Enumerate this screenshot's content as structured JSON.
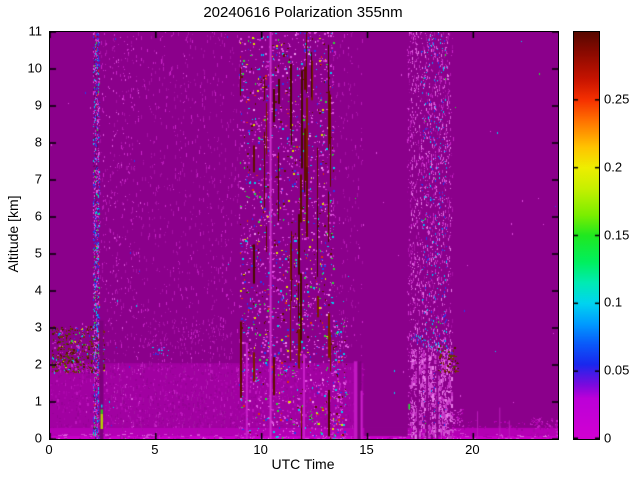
{
  "chart_data": {
    "type": "heatmap",
    "title": "20240616 Polarization 355nm",
    "xlabel": "UTC Time",
    "ylabel": "Altitude [km]",
    "x_range": [
      0,
      24
    ],
    "y_range": [
      0,
      11
    ],
    "grid": false,
    "x_ticks": {
      "values": [
        0,
        5,
        10,
        15,
        20
      ],
      "labels": [
        "0",
        "5",
        "10",
        "15",
        "20"
      ]
    },
    "y_ticks": {
      "values": [
        0,
        1,
        2,
        3,
        4,
        5,
        6,
        7,
        8,
        9,
        10,
        11
      ],
      "labels": [
        "0",
        "1",
        "2",
        "3",
        "4",
        "5",
        "6",
        "7",
        "8",
        "9",
        "10",
        "11"
      ]
    },
    "colorbar": {
      "vmin": 0,
      "vmax": 0.3,
      "ticks": [
        0,
        0.05,
        0.1,
        0.15,
        0.2,
        0.25
      ],
      "tick_labels": [
        "0",
        "0.05",
        "0.1",
        "0.15",
        "0.2",
        "0.25"
      ],
      "position": "right",
      "stops": [
        [
          0.0,
          "#D200D2"
        ],
        [
          0.03,
          "#BC00D8"
        ],
        [
          0.04,
          "#7A0ADE"
        ],
        [
          0.055,
          "#1A28EE"
        ],
        [
          0.07,
          "#0A5AFA"
        ],
        [
          0.085,
          "#009CFF"
        ],
        [
          0.1,
          "#00D4F0"
        ],
        [
          0.115,
          "#00EBB4"
        ],
        [
          0.13,
          "#00F060"
        ],
        [
          0.15,
          "#20E820"
        ],
        [
          0.165,
          "#7BEE00"
        ],
        [
          0.185,
          "#C8F000"
        ],
        [
          0.2,
          "#EEEE00"
        ],
        [
          0.215,
          "#FFC400"
        ],
        [
          0.235,
          "#FF7000"
        ],
        [
          0.25,
          "#F63000"
        ],
        [
          0.265,
          "#C81400"
        ],
        [
          0.285,
          "#8A0A00"
        ],
        [
          0.3,
          "#570800"
        ]
      ]
    },
    "background_color": "#8B008B",
    "features": [
      {
        "kind": "fill",
        "name": "background-low-depol",
        "t": [
          0,
          24
        ],
        "z": [
          0,
          11
        ],
        "color": "#8B008B"
      },
      {
        "kind": "fill",
        "name": "boundary-layer",
        "t": [
          0,
          14.8
        ],
        "z": [
          0.3,
          2.05
        ],
        "color": "#A101A1"
      },
      {
        "kind": "speckle",
        "name": "boundary-layer-texture",
        "t": [
          0,
          14.8
        ],
        "z": [
          0.3,
          2.05
        ],
        "density": 0.06,
        "dot": [
          2,
          3
        ],
        "palette": [
          [
            "#AB06AB",
            5
          ],
          [
            "#970297",
            5
          ],
          [
            "#BD17BD",
            2
          ]
        ]
      },
      {
        "kind": "fill",
        "name": "surface-strip",
        "t": [
          0,
          24
        ],
        "z": [
          0,
          0.3
        ],
        "color": "#B400B4"
      },
      {
        "kind": "fill",
        "name": "surface-line",
        "t": [
          0,
          24
        ],
        "z": [
          0,
          0.08
        ],
        "color": "#C900C9"
      },
      {
        "kind": "speckle",
        "name": "surface-dashes",
        "t": [
          0,
          24
        ],
        "z": [
          0,
          0.14
        ],
        "density": 0.09,
        "dot": [
          4,
          1
        ],
        "palette": [
          [
            "#D442D4",
            3
          ],
          [
            "#E066E0",
            1
          ],
          [
            "#AD00AD",
            3
          ]
        ]
      },
      {
        "kind": "fill",
        "name": "quiet-surface",
        "t": [
          14.85,
          16.9
        ],
        "z": [
          0.08,
          0.3
        ],
        "color": "#8B008B"
      },
      {
        "kind": "speckle",
        "name": "drizzle-early",
        "t": [
          2.35,
          9.0
        ],
        "z": [
          0,
          11
        ],
        "density": 0.022,
        "dot": [
          1,
          4
        ],
        "palette": [
          [
            "#A311A3",
            5
          ],
          [
            "#B51AB5",
            3
          ],
          [
            "#C724C7",
            1.5
          ]
        ]
      },
      {
        "kind": "speckle",
        "name": "drizzle-band-halo",
        "t": [
          13.3,
          14.78
        ],
        "z": [
          0,
          11
        ],
        "density": 0.02,
        "dot": [
          1,
          4
        ],
        "palette": [
          [
            "#A311A3",
            5
          ],
          [
            "#B51AB5",
            3
          ],
          [
            "#C724C7",
            1.5
          ]
        ]
      },
      {
        "kind": "speckle",
        "name": "drizzle-right-band",
        "t": [
          16.95,
          19.05
        ],
        "z": [
          0,
          11
        ],
        "density": 0.03,
        "dot": [
          1,
          4
        ],
        "palette": [
          [
            "#A311A3",
            5
          ],
          [
            "#B51AB5",
            3
          ],
          [
            "#C724C7",
            1.5
          ]
        ]
      },
      {
        "kind": "speckle",
        "name": "aerosol-cluster-early",
        "t": [
          0.1,
          2.55
        ],
        "z": [
          1.8,
          3.05
        ],
        "density": 0.28,
        "dot": [
          2,
          2
        ],
        "palette": [
          [
            "#574700",
            5
          ],
          [
            "#5A1500",
            5
          ],
          [
            "#7A3000",
            3
          ],
          [
            "#8B008B",
            7
          ],
          [
            "#C733C7",
            3
          ],
          [
            "#2A3BEE",
            0.6
          ],
          [
            "#00CFEE",
            0.6
          ],
          [
            "#2FD838",
            0.4
          ],
          [
            "#E0E000",
            0.3
          ]
        ]
      },
      {
        "kind": "speckle",
        "name": "noise-column-0220",
        "t": [
          2.05,
          2.33
        ],
        "z": [
          0,
          11
        ],
        "density": 0.5,
        "dot": [
          1,
          2
        ],
        "palette": [
          [
            "#2A3BEE",
            3
          ],
          [
            "#00CFEE",
            2
          ],
          [
            "#CC2CCC",
            4
          ],
          [
            "#6A016A",
            3
          ],
          [
            "#E060E0",
            2
          ],
          [
            "#2FD838",
            0.7
          ],
          [
            "#E03010",
            0.3
          ]
        ]
      },
      {
        "kind": "vline",
        "name": "dark-column-0230",
        "t": 2.43,
        "z": [
          0,
          3.2
        ],
        "color": "#7D017D",
        "w": 4
      },
      {
        "kind": "fill",
        "name": "yellow-spot-0230",
        "t": [
          2.39,
          2.5
        ],
        "z": [
          0.27,
          0.68
        ],
        "color": "#B8D800"
      },
      {
        "kind": "fill",
        "name": "green-spot-0230",
        "t": [
          2.39,
          2.5
        ],
        "z": [
          0.68,
          0.8
        ],
        "color": "#35C814"
      },
      {
        "kind": "fill",
        "name": "cyan-spot-0230",
        "t": [
          2.41,
          2.48
        ],
        "z": [
          0.85,
          0.93
        ],
        "color": "#00CFEE"
      },
      {
        "kind": "speckle",
        "name": "sparse-after-0230",
        "t": [
          2.5,
          4.3
        ],
        "z": [
          0,
          11
        ],
        "density": 0.012,
        "dot": [
          1,
          2
        ],
        "palette": [
          [
            "#C72EC7",
            5
          ],
          [
            "#DD55DD",
            2
          ],
          [
            "#00CFEE",
            0.3
          ],
          [
            "#2A3BEE",
            0.3
          ]
        ]
      },
      {
        "kind": "speckle",
        "name": "residual-layer-streaks",
        "t": [
          4.3,
          8.6
        ],
        "z": [
          2.3,
          3.2
        ],
        "density": 0.05,
        "dot": [
          1,
          3
        ],
        "palette": [
          [
            "#A311A3",
            4
          ],
          [
            "#B51AB5",
            3
          ],
          [
            "#C724C7",
            1
          ]
        ]
      },
      {
        "kind": "speckle",
        "name": "blue-dots-0500",
        "t": [
          4.8,
          5.6
        ],
        "z": [
          2.25,
          2.5
        ],
        "density": 0.1,
        "dot": [
          2,
          1
        ],
        "palette": [
          [
            "#2A3BEE",
            3
          ],
          [
            "#00CFEE",
            2
          ],
          [
            "#5A78FF",
            1
          ]
        ]
      },
      {
        "kind": "speckle",
        "name": "main-noise-band",
        "t": [
          8.95,
          13.4
        ],
        "z": [
          0,
          11
        ],
        "density": 0.055,
        "dot": [
          2,
          2
        ],
        "palette": [
          [
            "#E055E0",
            8
          ],
          [
            "#C828C8",
            6
          ],
          [
            "#2A3BEE",
            2.5
          ],
          [
            "#00CFEE",
            2.5
          ],
          [
            "#2FD838",
            1.6
          ],
          [
            "#E0E000",
            1.2
          ],
          [
            "#E03010",
            1.2
          ],
          [
            "#5E1200",
            2
          ],
          [
            "#EE99EE",
            1
          ]
        ]
      },
      {
        "kind": "vstreaks",
        "name": "dark-red-streaks",
        "t": [
          9.0,
          13.3
        ],
        "z": [
          0,
          11
        ],
        "count": 18,
        "w": 2,
        "seg": [
          20,
          80
        ],
        "colors": [
          "#600E00",
          "#7A1E00",
          "#490900"
        ]
      },
      {
        "kind": "speckle",
        "name": "band-low-extension",
        "t": [
          13.35,
          14.05
        ],
        "z": [
          0,
          3.2
        ],
        "density": 0.1,
        "dot": [
          2,
          2
        ],
        "palette": [
          [
            "#E055E0",
            8
          ],
          [
            "#C828C8",
            6
          ],
          [
            "#2A3BEE",
            2.5
          ],
          [
            "#00CFEE",
            2.5
          ],
          [
            "#2FD838",
            1.6
          ],
          [
            "#E0E000",
            1.2
          ],
          [
            "#E03010",
            1.2
          ],
          [
            "#5E1200",
            2
          ]
        ]
      },
      {
        "kind": "vline",
        "name": "bright-column-1025",
        "t": 10.42,
        "z": [
          0,
          11
        ],
        "color": "#CE30CE",
        "w": 2
      },
      {
        "kind": "vline",
        "name": "bright-column-0920",
        "t": 9.3,
        "z": [
          0,
          2.6
        ],
        "color": "#C81EC8",
        "w": 2
      },
      {
        "kind": "vline",
        "name": "bright-column-1200",
        "t": 12.0,
        "z": [
          0,
          2.3
        ],
        "color": "#C81EC8",
        "w": 2
      },
      {
        "kind": "vline",
        "name": "bright-column-1427",
        "t": 14.45,
        "z": [
          0,
          2.1
        ],
        "color": "#C217C2",
        "w": 4
      },
      {
        "kind": "vline",
        "name": "dark-column-1437",
        "t": 14.62,
        "z": [
          0,
          2.1
        ],
        "color": "#7D017D",
        "w": 4
      },
      {
        "kind": "vline",
        "name": "bright-column-1443",
        "t": 14.72,
        "z": [
          0,
          1.3
        ],
        "color": "#C81EC8",
        "w": 2
      },
      {
        "kind": "speckle",
        "name": "pre-right-band-line",
        "t": [
          16.9,
          17.08
        ],
        "z": [
          0,
          11
        ],
        "density": 0.1,
        "dot": [
          1,
          2
        ],
        "palette": [
          [
            "#C72EC7",
            4
          ],
          [
            "#DD55DD",
            2
          ],
          [
            "#9A059A",
            3
          ]
        ]
      },
      {
        "kind": "fill",
        "name": "green-dot-1700",
        "t": [
          16.93,
          17.01
        ],
        "z": [
          0.8,
          0.95
        ],
        "color": "#2FD838"
      },
      {
        "kind": "speckle",
        "name": "right-band-pink",
        "t": [
          17.05,
          18.95
        ],
        "z": [
          0,
          11
        ],
        "density": 0.085,
        "dot": [
          1,
          3
        ],
        "palette": [
          [
            "#D857D8",
            8
          ],
          [
            "#C22EC2",
            5
          ],
          [
            "#E87AE8",
            3
          ],
          [
            "#8F018F",
            3
          ]
        ]
      },
      {
        "kind": "speckle",
        "name": "right-band-blue-dots",
        "t": [
          17.55,
          18.75
        ],
        "z": [
          0.3,
          11
        ],
        "density": 0.03,
        "dot": [
          1,
          2
        ],
        "palette": [
          [
            "#2A3BEE",
            4
          ],
          [
            "#00CFEE",
            3
          ],
          [
            "#1E88EE",
            2
          ],
          [
            "#2FD838",
            0.4
          ]
        ]
      },
      {
        "kind": "speckle",
        "name": "right-band-lowlevel",
        "t": [
          17.05,
          19.0
        ],
        "z": [
          0,
          2.45
        ],
        "density": 0.3,
        "dot": [
          2,
          4
        ],
        "palette": [
          [
            "#D24FD2",
            6
          ],
          [
            "#C22EC2",
            4
          ],
          [
            "#E87AE8",
            3
          ],
          [
            "#8B008B",
            4
          ]
        ]
      },
      {
        "kind": "vline",
        "name": "right-band-gap1",
        "t": 17.38,
        "z": [
          0,
          2.45
        ],
        "color": "#8B008B",
        "w": 2
      },
      {
        "kind": "vline",
        "name": "right-band-gap2",
        "t": 17.82,
        "z": [
          0,
          2.45
        ],
        "color": "#8B008B",
        "w": 2
      },
      {
        "kind": "vline",
        "name": "right-band-gap3",
        "t": 18.3,
        "z": [
          0,
          2.45
        ],
        "color": "#8B008B",
        "w": 2
      },
      {
        "kind": "arc",
        "name": "cloud-cap-arc",
        "t": [
          17.1,
          19.0
        ],
        "z": [
          2.2,
          2.95
        ],
        "zpath": [
          2.78,
          2.35
        ],
        "jitter": 0.12,
        "density": 1.1,
        "palette": [
          [
            "#00CFEE",
            3
          ],
          [
            "#2A3BEE",
            3
          ],
          [
            "#7FE4FF",
            1
          ],
          [
            "#5E1200",
            1.5
          ],
          [
            "#E87AE8",
            1
          ]
        ]
      },
      {
        "kind": "speckle",
        "name": "maroon-cluster-1830",
        "t": [
          18.35,
          19.3
        ],
        "z": [
          1.8,
          2.5
        ],
        "density": 0.22,
        "dot": [
          2,
          2
        ],
        "palette": [
          [
            "#5A1500",
            5
          ],
          [
            "#574700",
            3
          ],
          [
            "#7A3000",
            3
          ],
          [
            "#8B008B",
            5
          ],
          [
            "#C733C7",
            2
          ]
        ]
      },
      {
        "kind": "speckle",
        "name": "right-band-taper",
        "t": [
          19.0,
          19.55
        ],
        "z": [
          0,
          0.8
        ],
        "density": 0.15,
        "dot": [
          2,
          2
        ],
        "palette": [
          [
            "#C72EC7",
            4
          ],
          [
            "#B400B4",
            3
          ],
          [
            "#DD55DD",
            1
          ]
        ]
      },
      {
        "kind": "speckle",
        "name": "evening-surface-bumps",
        "t": [
          19.3,
          24
        ],
        "z": [
          0.25,
          0.5
        ],
        "density": 0.06,
        "dot": [
          2,
          2
        ],
        "palette": [
          [
            "#B400B4",
            4
          ],
          [
            "#A101A1",
            3
          ]
        ]
      },
      {
        "kind": "vline",
        "name": "surface-spike-2012",
        "t": 20.2,
        "z": [
          0,
          0.75
        ],
        "color": "#B91CB9",
        "w": 1
      },
      {
        "kind": "vline",
        "name": "surface-spike-2115",
        "t": 21.25,
        "z": [
          0,
          0.85
        ],
        "color": "#B91CB9",
        "w": 1
      },
      {
        "kind": "vline",
        "name": "surface-spike-2142",
        "t": 21.7,
        "z": [
          0,
          0.5
        ],
        "color": "#B91CB9",
        "w": 1
      },
      {
        "kind": "speckle",
        "name": "late-surface-texture",
        "t": [
          22.7,
          23.95
        ],
        "z": [
          0.1,
          0.6
        ],
        "density": 0.12,
        "dot": [
          2,
          2
        ],
        "palette": [
          [
            "#A905A9",
            4
          ],
          [
            "#C01CC0",
            2
          ]
        ]
      },
      {
        "kind": "speckle",
        "name": "stray-noise-dots",
        "t": [
          0,
          24
        ],
        "z": [
          0.4,
          11
        ],
        "density": 0.0004,
        "dot": [
          1,
          2
        ],
        "palette": [
          [
            "#D846D8",
            4
          ],
          [
            "#00CFEE",
            1
          ],
          [
            "#2A3BEE",
            1
          ],
          [
            "#2FD838",
            0.5
          ]
        ]
      }
    ]
  }
}
